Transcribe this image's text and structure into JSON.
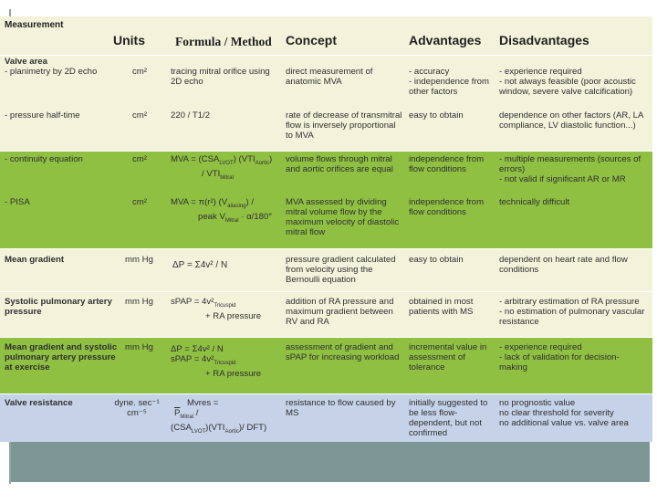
{
  "measurement_label": "Measurement",
  "headers": {
    "units": "Units",
    "formula": "Formula / Method",
    "concept": "Concept",
    "advantages": "Advantages",
    "disadvantages": "Disadvantages"
  },
  "colors": {
    "cream": "#f3f3dc",
    "green": "#8fc042",
    "blue": "#c5d2e8",
    "footer": "#7c9795"
  },
  "rows": {
    "valve_area": {
      "name": "Valve area",
      "sub1": "- planimetry by 2D echo",
      "units": "cm²",
      "formula": "tracing mitral orifice using 2D echo",
      "concept": "direct measurement of anatomic MVA",
      "advantages": "- accuracy\n- independence from other factors",
      "disadvantages": "- experience required\n- not always feasible (poor acoustic window, severe valve calcification)"
    },
    "pht": {
      "name": "- pressure half-time",
      "units": "cm²",
      "formula": "220 / T1/2",
      "concept": "rate of decrease of transmitral flow is inversely proportional to MVA",
      "advantages": "easy to obtain",
      "disadvantages": "dependence on other factors (AR, LA compliance, LV diastolic function...)"
    },
    "continuity": {
      "name": "- continuity equation",
      "units": "cm²",
      "formula_a": "MVA = (CSA",
      "formula_a_sub": "LVOT",
      "formula_a2": ") (VTI",
      "formula_a2_sub": "Aortic",
      "formula_a3": ")",
      "formula_b": "/ VTI",
      "formula_b_sub": "Mitral",
      "concept": "volume flows through mitral and aortic orifices are equal",
      "advantages": "independence from flow conditions",
      "disadvantages": "- multiple measurements (sources of errors)\n- not valid if significant AR or MR"
    },
    "pisa": {
      "name": "- PISA",
      "units": "cm²",
      "formula_a": "MVA = π(r²) (V",
      "formula_a_sub": "aliasing",
      "formula_a2": ") /",
      "formula_b": "peak V",
      "formula_b_sub": "Mitral",
      "formula_b2": " · α/180°",
      "concept": "MVA assessed by dividing mitral volume flow by the maximum velocity of diastolic mitral flow",
      "advantages": "independence from flow conditions",
      "disadvantages": "technically difficult"
    },
    "mean_gradient": {
      "name": "Mean gradient",
      "units": "mm Hg",
      "formula": "ΔP = Σ4v² / N",
      "concept": "pressure gradient calculated from velocity using the Bernoulli equation",
      "advantages": "easy to obtain",
      "disadvantages": "dependent on heart rate and flow conditions"
    },
    "spap": {
      "name": "Systolic pulmonary artery pressure",
      "units": "mm Hg",
      "formula_a": "sPAP = 4v²",
      "formula_a_sub": "Tricuspid",
      "formula_b": "+ RA pressure",
      "concept": "addition of RA pressure and maximum gradient between RV and RA",
      "advantages": "obtained in most patients with MS",
      "disadvantages": "- arbitrary estimation of RA pressure\n- no estimation of pulmonary vascular resistance"
    },
    "exercise": {
      "name": "Mean gradient and systolic pulmonary artery pressure at exercise",
      "units": "mm Hg",
      "formula_a": "ΔP = Σ4v² / N",
      "formula_b": "sPAP = 4v²",
      "formula_b_sub": "Tricuspid",
      "formula_c": "+ RA pressure",
      "concept": "assessment of gradient and sPAP for increasing workload",
      "advantages": "incremental value in assessment of tolerance",
      "disadvantages": "- experience required\n- lack of validation for decision-making"
    },
    "resistance": {
      "name": "Valve resistance",
      "units": "dyne. sec⁻¹ cm⁻⁵",
      "formula_a": "Mvres =",
      "formula_b": "P",
      "formula_b_sub": "Mitral",
      "formula_b2": " /",
      "formula_c": "(CSA",
      "formula_c_sub": "LVOT",
      "formula_c2": ")(VTI",
      "formula_c2_sub": "Aortic",
      "formula_c3": ")/ DFT)",
      "concept": "resistance to flow caused by MS",
      "advantages": "initially suggested to be less flow-dependent, but not confirmed",
      "disadvantages": "no prognostic value\nno clear threshold for severity\nno additional value vs. valve area"
    }
  }
}
